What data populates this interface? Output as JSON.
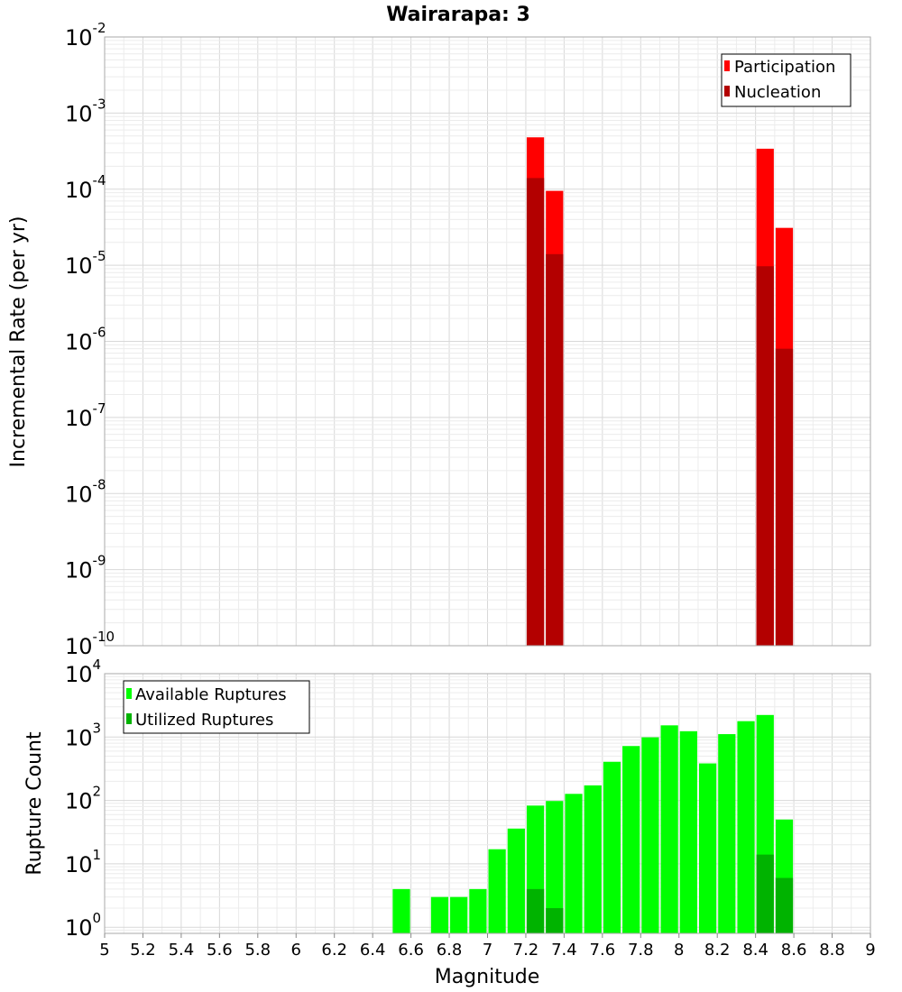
{
  "title": "Wairarapa: 3",
  "chart_data": [
    {
      "type": "bar",
      "ylabel": "Incremental Rate (per yr)",
      "xlim": [
        5,
        9
      ],
      "ylim": [
        1e-10,
        0.01
      ],
      "yscale": "log",
      "grid": true,
      "legend_position": "top-right",
      "y_ticks": [
        {
          "base": "10",
          "exp": "-2"
        },
        {
          "base": "10",
          "exp": "-3"
        },
        {
          "base": "10",
          "exp": "-4"
        },
        {
          "base": "10",
          "exp": "-5"
        },
        {
          "base": "10",
          "exp": "-6"
        },
        {
          "base": "10",
          "exp": "-7"
        },
        {
          "base": "10",
          "exp": "-8"
        },
        {
          "base": "10",
          "exp": "-9"
        },
        {
          "base": "10",
          "exp": "-10"
        }
      ],
      "series": [
        {
          "name": "Participation",
          "color": "#ff0000",
          "points": [
            {
              "x": 7.25,
              "y": 0.00048
            },
            {
              "x": 7.35,
              "y": 9.5e-05
            },
            {
              "x": 8.45,
              "y": 0.00034
            },
            {
              "x": 8.55,
              "y": 3.1e-05
            }
          ]
        },
        {
          "name": "Nucleation",
          "color": "#b30000",
          "points": [
            {
              "x": 7.25,
              "y": 0.00014
            },
            {
              "x": 7.35,
              "y": 1.4e-05
            },
            {
              "x": 8.45,
              "y": 9.7e-06
            },
            {
              "x": 8.55,
              "y": 8e-07
            }
          ]
        }
      ]
    },
    {
      "type": "bar",
      "xlabel": "Magnitude",
      "ylabel": "Rupture Count",
      "xlim": [
        5,
        9
      ],
      "ylim": [
        0.8,
        10000
      ],
      "yscale": "log",
      "grid": true,
      "legend_position": "top-left",
      "x_ticks": [
        "5",
        "5.2",
        "5.4",
        "5.6",
        "5.8",
        "6",
        "6.2",
        "6.4",
        "6.6",
        "6.8",
        "7",
        "7.2",
        "7.4",
        "7.6",
        "7.8",
        "8",
        "8.2",
        "8.4",
        "8.6",
        "8.8",
        "9"
      ],
      "y_ticks": [
        {
          "base": "10",
          "exp": "4"
        },
        {
          "base": "10",
          "exp": "3"
        },
        {
          "base": "10",
          "exp": "2"
        },
        {
          "base": "10",
          "exp": "1"
        },
        {
          "base": "10",
          "exp": "0"
        }
      ],
      "series": [
        {
          "name": "Available Ruptures",
          "color": "#00ff00",
          "points": [
            {
              "x": 6.55,
              "y": 4
            },
            {
              "x": 6.75,
              "y": 3
            },
            {
              "x": 6.85,
              "y": 3
            },
            {
              "x": 6.95,
              "y": 4
            },
            {
              "x": 7.05,
              "y": 17
            },
            {
              "x": 7.15,
              "y": 36
            },
            {
              "x": 7.25,
              "y": 83
            },
            {
              "x": 7.35,
              "y": 98
            },
            {
              "x": 7.45,
              "y": 127
            },
            {
              "x": 7.55,
              "y": 173
            },
            {
              "x": 7.65,
              "y": 407
            },
            {
              "x": 7.75,
              "y": 722
            },
            {
              "x": 7.85,
              "y": 990
            },
            {
              "x": 7.95,
              "y": 1530
            },
            {
              "x": 8.05,
              "y": 1236
            },
            {
              "x": 8.15,
              "y": 384
            },
            {
              "x": 8.25,
              "y": 1112
            },
            {
              "x": 8.35,
              "y": 1780
            },
            {
              "x": 8.45,
              "y": 2230
            },
            {
              "x": 8.55,
              "y": 50
            }
          ]
        },
        {
          "name": "Utilized Ruptures",
          "color": "#00b300",
          "points": [
            {
              "x": 7.25,
              "y": 4
            },
            {
              "x": 7.35,
              "y": 2
            },
            {
              "x": 8.45,
              "y": 14
            },
            {
              "x": 8.55,
              "y": 6
            }
          ]
        }
      ]
    }
  ]
}
